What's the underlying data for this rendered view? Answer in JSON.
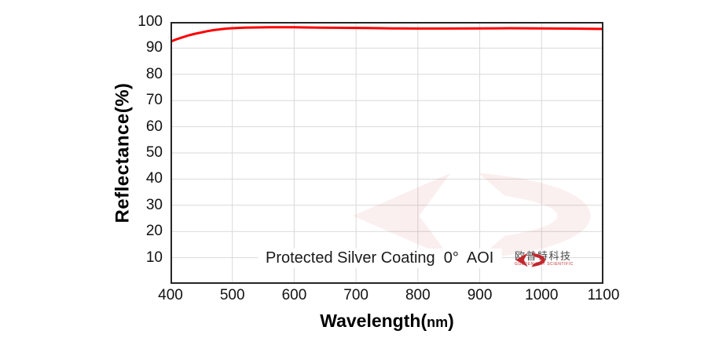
{
  "figure": {
    "ylabel": "Reflectance(%)",
    "xlabel": {
      "main": "Wavelength",
      "open": "(",
      "unit": "nm",
      "close": ")"
    },
    "annotation": "Protected Silver Coating  0°  AOI",
    "logo": {
      "cn": "欧普特科技",
      "en": "GOLDEN WAY SCIENTIFIC",
      "mark_color": "#c1272d",
      "cn_color": "#4a4a4a"
    }
  },
  "chart_data": {
    "type": "line",
    "title": "",
    "annotation": "Protected Silver Coating  0°  AOI",
    "xlabel": "Wavelength(nm)",
    "ylabel": "Reflectance(%)",
    "xlim": [
      400,
      1100
    ],
    "ylim": [
      0,
      100
    ],
    "xticks": [
      400,
      500,
      600,
      700,
      800,
      900,
      1000,
      1100
    ],
    "yticks": [
      10,
      20,
      30,
      40,
      50,
      60,
      70,
      80,
      90,
      100
    ],
    "grid": true,
    "grid_color": "#d9d9d9",
    "axis_color": "#262626",
    "legend_position": "none",
    "watermark_opacity": 0.07,
    "series": [
      {
        "name": "Protected Silver Coating 0° AOI",
        "color": "#ff0000",
        "x": [
          400,
          410,
          420,
          430,
          440,
          450,
          460,
          470,
          480,
          490,
          500,
          520,
          540,
          560,
          580,
          600,
          640,
          680,
          720,
          760,
          800,
          850,
          900,
          950,
          1000,
          1050,
          1100
        ],
        "y": [
          92.5,
          93.4,
          94.2,
          94.9,
          95.5,
          96.0,
          96.5,
          96.9,
          97.2,
          97.45,
          97.6,
          97.8,
          97.9,
          98.0,
          98.0,
          97.95,
          97.85,
          97.75,
          97.65,
          97.55,
          97.5,
          97.5,
          97.55,
          97.6,
          97.55,
          97.45,
          97.35
        ]
      }
    ]
  }
}
